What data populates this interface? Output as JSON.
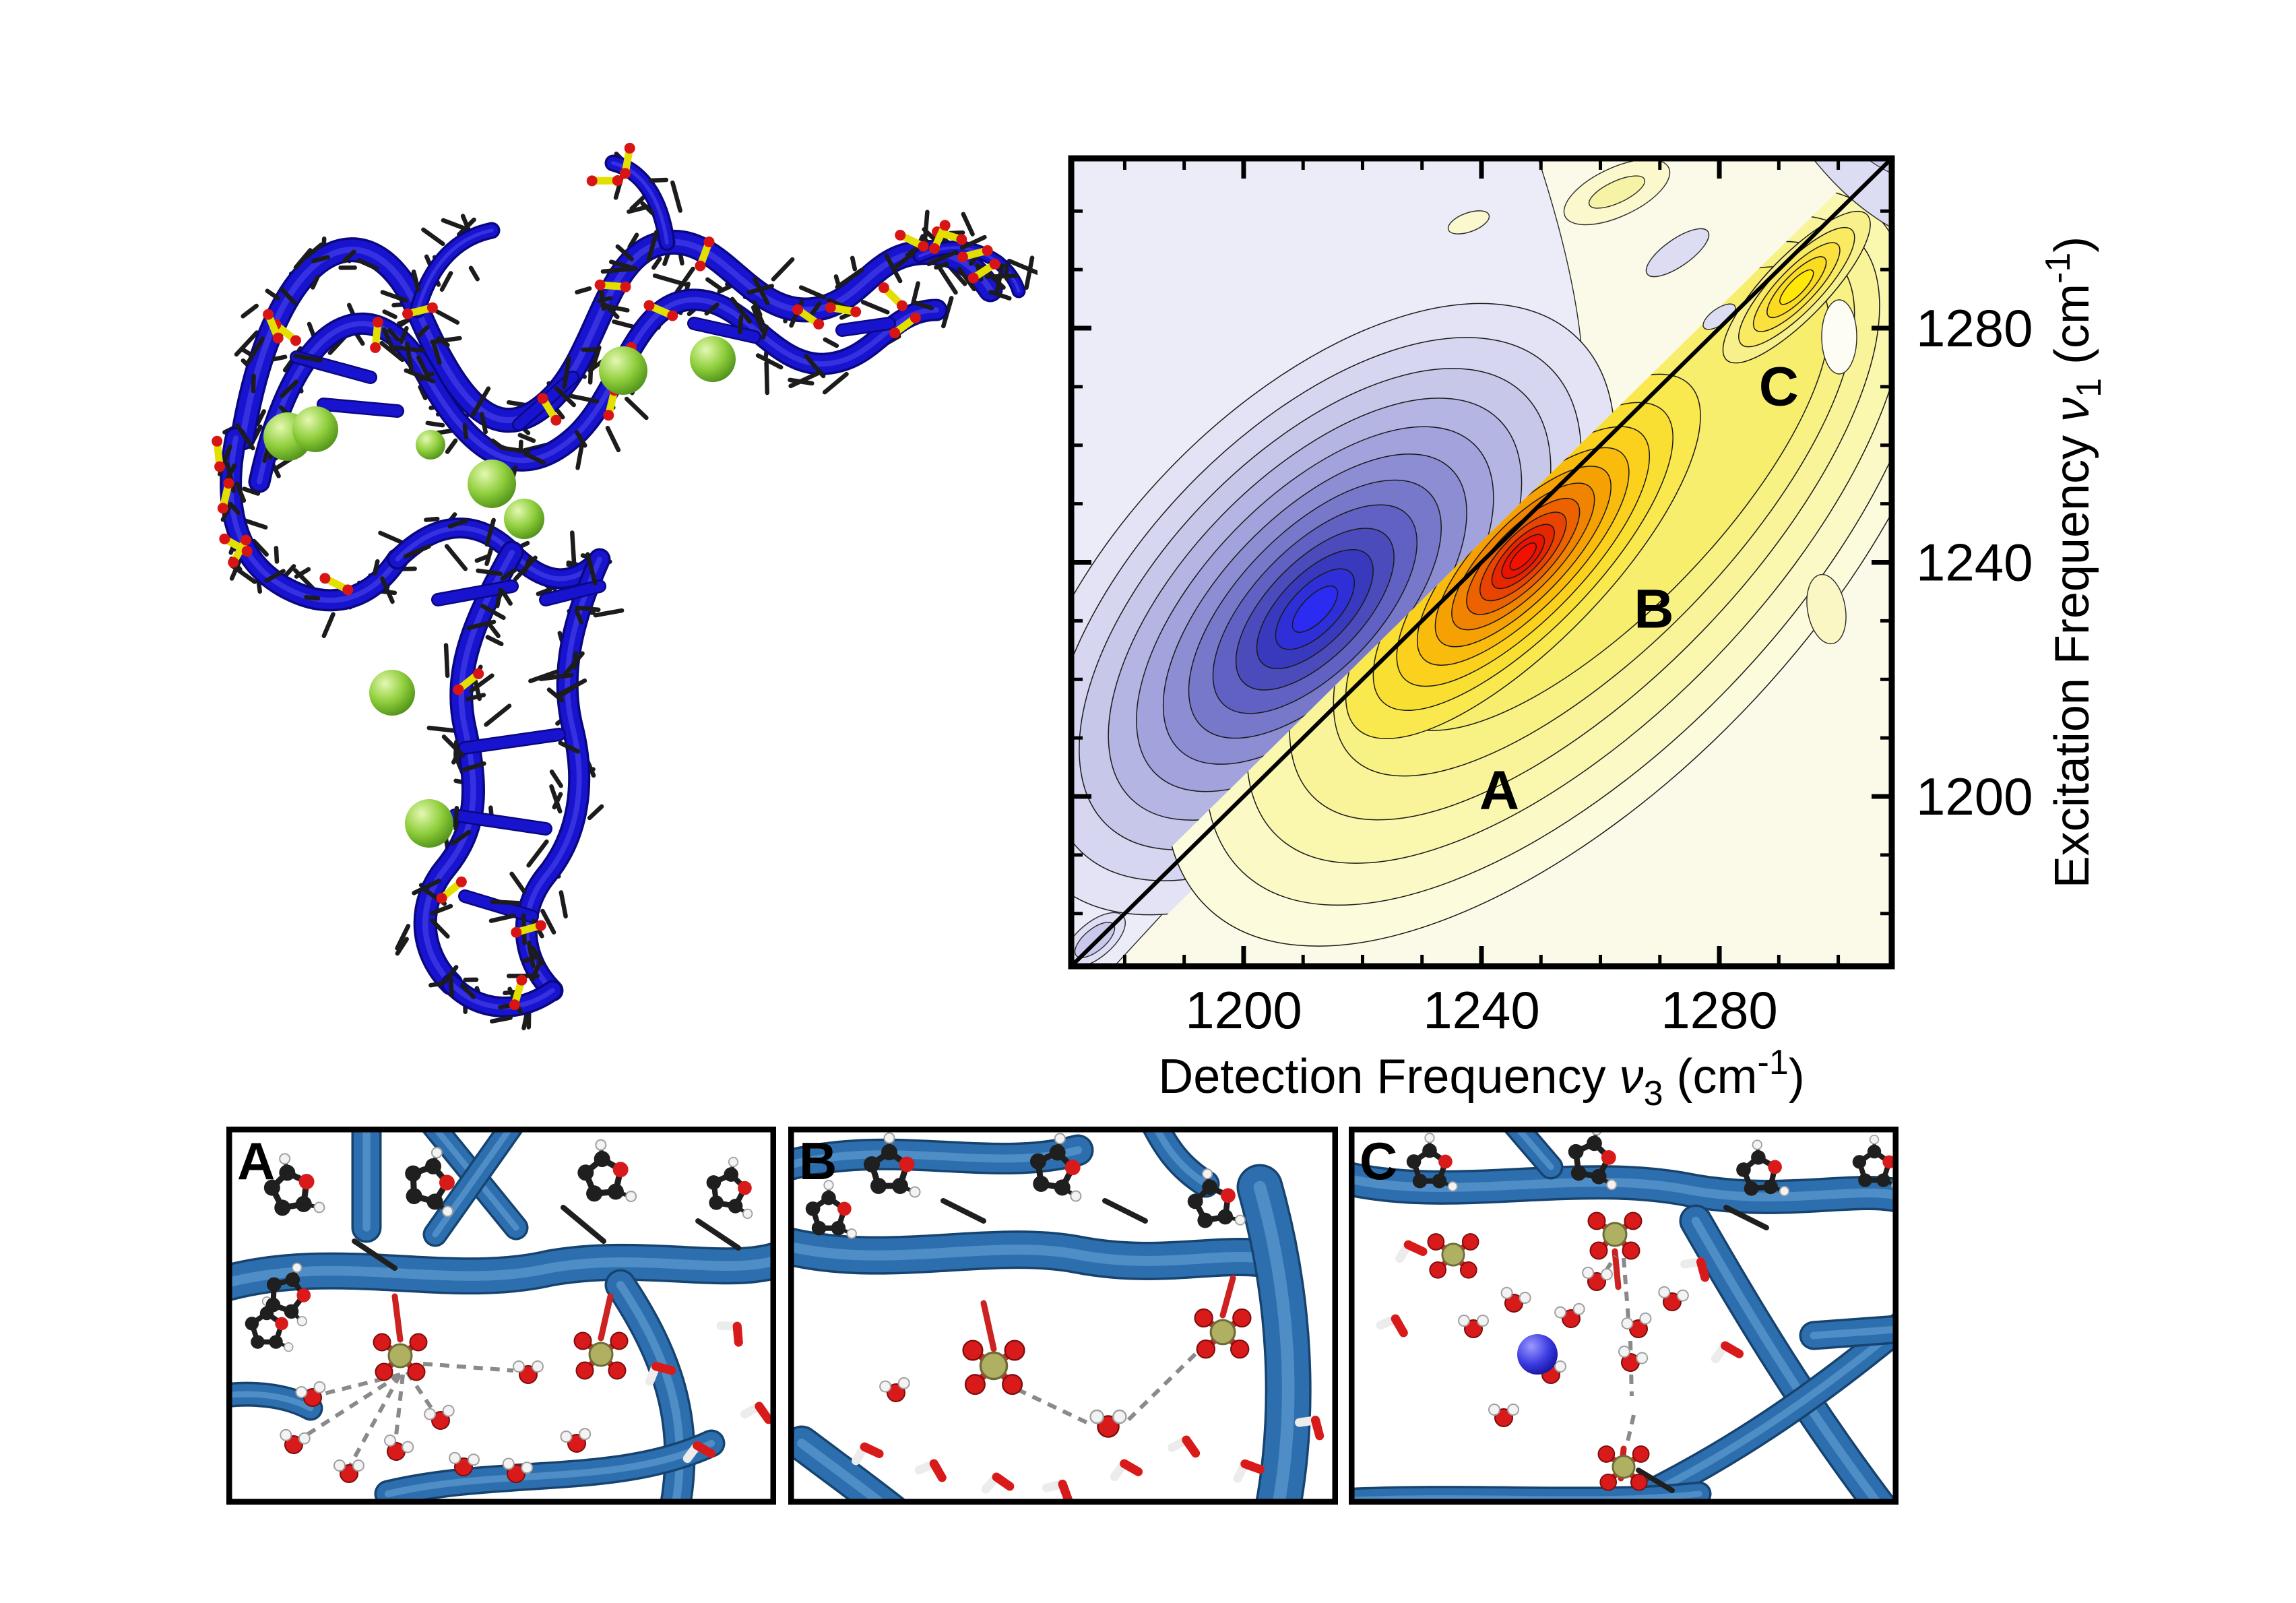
{
  "page": {
    "background": "#ffffff"
  },
  "molecule": {
    "kind": "tRNA ribbon structure with bound ions",
    "colors": {
      "ribbon": "#1813ce",
      "sticks": "#1c1c1c",
      "phosphate_yellow": "#e3df00",
      "oxygen_red": "#d81414",
      "ion_green": "#80c832"
    }
  },
  "chart_data": {
    "type": "heatmap",
    "subtype": "2D-IR contour spectrum",
    "xlabel_parts": {
      "prefix": "Detection Frequency ",
      "nu": "ν",
      "sub": "3",
      "unit_open": " (cm",
      "sup": "-1",
      "unit_close": ")"
    },
    "ylabel_parts": {
      "prefix": "Excitation Frequency ",
      "nu": "ν",
      "sub": "1",
      "unit_open": " (cm",
      "sup": "-1",
      "unit_close": ")"
    },
    "x_ticks": [
      1200,
      1240,
      1280
    ],
    "y_ticks": [
      1200,
      1240,
      1280
    ],
    "minor_tick_step": 10,
    "x_range": [
      1171,
      1309
    ],
    "y_range": [
      1171,
      1309
    ],
    "grid": false,
    "legend": "none",
    "diagonal_line": true,
    "background": "#FBFAE8",
    "negative_peak": {
      "nu3": 1212,
      "nu1": 1232,
      "sign": "negative",
      "core_color": "#2B2BF2"
    },
    "positive_peak": {
      "nu3": 1247,
      "nu1": 1241,
      "sign": "positive",
      "core_color": "#F21000"
    },
    "upper_positive_peak": {
      "nu3": 1293,
      "nu1": 1287,
      "sign": "positive",
      "core_color": "#FFE808"
    },
    "annotations": [
      {
        "label": "A",
        "nu3": 1243,
        "nu1": 1201
      },
      {
        "label": "B",
        "nu3": 1269,
        "nu1": 1232
      },
      {
        "label": "C",
        "nu3": 1290,
        "nu1": 1270
      }
    ]
  },
  "bottom_panels": [
    {
      "label": "A"
    },
    {
      "label": "B"
    },
    {
      "label": "C"
    }
  ],
  "snapshot_colors": {
    "backbone_tube": "#2d6fae",
    "carbon": "#1f1f1f",
    "oxygen": "#d81a1a",
    "hydrogen": "#f3f3f3",
    "phosphorus": "#b0b062",
    "hbond_dash": "#8a8a8a",
    "sodium_ion": "#2a2ad0"
  }
}
